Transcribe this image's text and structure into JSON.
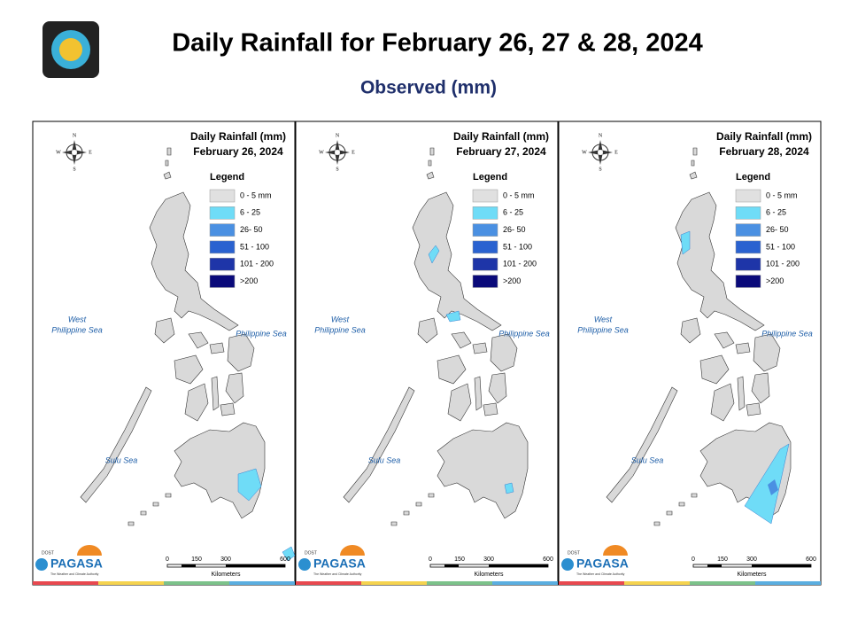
{
  "header": {
    "title": "Daily Rainfall for February 26, 27 & 28, 2024",
    "subtitle": "Observed (mm)"
  },
  "map_title": "Daily Rainfall (mm)",
  "panels": [
    {
      "date": "February 26, 2024"
    },
    {
      "date": "February 27, 2024"
    },
    {
      "date": "February 28, 2024"
    }
  ],
  "legend": {
    "title": "Legend",
    "items": [
      {
        "label": "0 - 5 mm",
        "color": "#e0e0e0"
      },
      {
        "label": "6 - 25",
        "color": "#6fdcf7"
      },
      {
        "label": "26- 50",
        "color": "#4a90e2"
      },
      {
        "label": "51 - 100",
        "color": "#2a62d0"
      },
      {
        "label": "101 - 200",
        "color": "#1e35a8"
      },
      {
        "label": ">200",
        "color": "#0a0a7a"
      }
    ]
  },
  "compass": {
    "n": "N",
    "s": "S",
    "e": "E",
    "w": "W"
  },
  "seas": {
    "west": [
      "West",
      "Philippine Sea"
    ],
    "east": "Philippine Sea",
    "sulu": "Sulu Sea"
  },
  "scale": {
    "ticks": [
      "0",
      "150",
      "300",
      "600"
    ],
    "unit": "Kilometers"
  },
  "logo": {
    "agency": "PAGASA",
    "dost": "DOST",
    "tagline": "The Weather and Climate Authority"
  }
}
